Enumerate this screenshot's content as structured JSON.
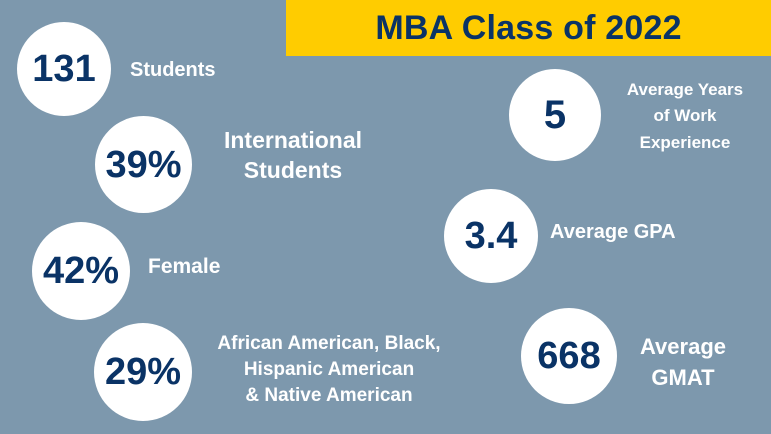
{
  "title": "MBA Class of 2022",
  "colors": {
    "background": "#7d98ad",
    "banner": "#ffcc00",
    "value_text": "#0a3366",
    "label_text": "#ffffff",
    "circle": "#ffffff"
  },
  "stats": [
    {
      "value": "131",
      "label": "Students"
    },
    {
      "value": "39%",
      "label_lines": [
        "International",
        "Students"
      ]
    },
    {
      "value": "42%",
      "label": "Female"
    },
    {
      "value": "29%",
      "label_lines": [
        "African American, Black,",
        "Hispanic American",
        "& Native American"
      ]
    },
    {
      "value": "5",
      "label_lines": [
        "Average Years",
        "of Work",
        "Experience"
      ]
    },
    {
      "value": "3.4",
      "label": "Average GPA"
    },
    {
      "value": "668",
      "label_lines": [
        "Average",
        "GMAT"
      ]
    }
  ]
}
